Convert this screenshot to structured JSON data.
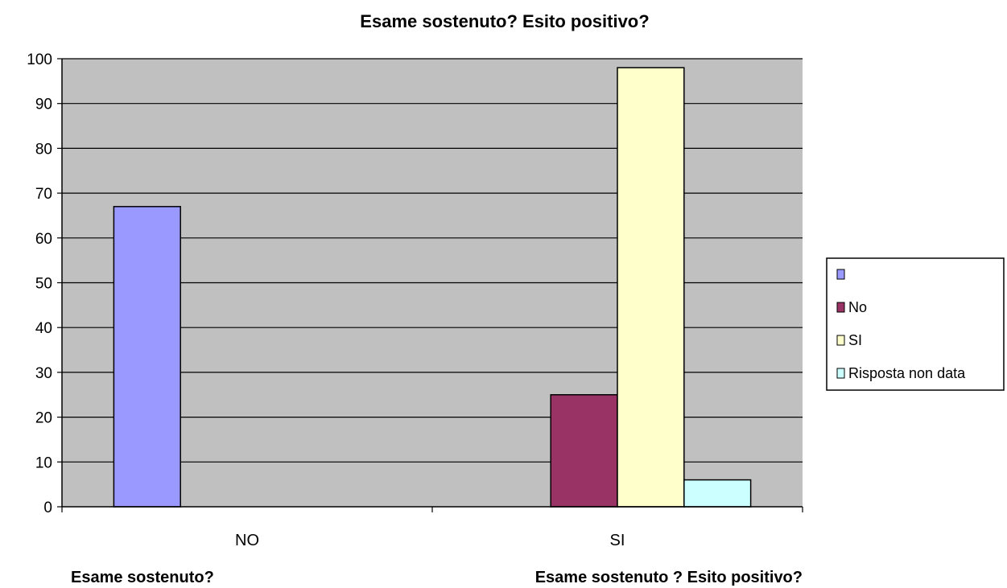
{
  "chart_data": {
    "type": "bar",
    "title": "Esame sostenuto? Esito positivo?",
    "categories": [
      "NO",
      "SI"
    ],
    "axis_titles": [
      "Esame sostenuto?",
      "Esame sostenuto ?  Esito positivo?"
    ],
    "series": [
      {
        "name": "",
        "color": "#9999FF",
        "values": [
          67,
          null
        ]
      },
      {
        "name": "No",
        "color": "#993366",
        "values": [
          null,
          25
        ]
      },
      {
        "name": "SI",
        "color": "#FFFFCC",
        "values": [
          null,
          98
        ]
      },
      {
        "name": "Risposta non data",
        "color": "#CCFFFF",
        "values": [
          null,
          6
        ]
      }
    ],
    "ylim": [
      0,
      100
    ],
    "yticks": [
      0,
      10,
      20,
      30,
      40,
      50,
      60,
      70,
      80,
      90,
      100
    ],
    "plot_background": "#C0C0C0",
    "grid": true,
    "legend": "right"
  }
}
